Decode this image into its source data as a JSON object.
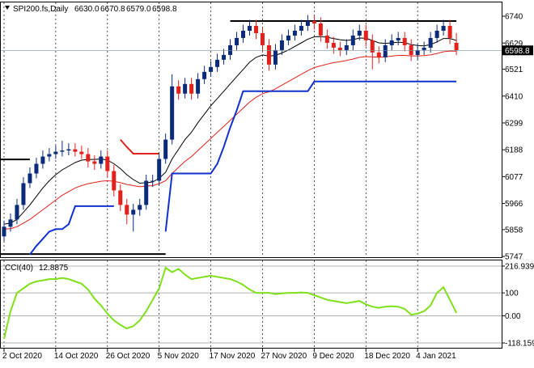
{
  "chart_data": [
    {
      "type": "candlestick",
      "title": "SPI200.fs,Daily",
      "last_labels": [
        "6630.0",
        "6670.8",
        "6579.0",
        "6598.8"
      ],
      "xlim": [
        -0.5,
        77
      ],
      "xticks": [
        {
          "value": 0,
          "label": "2 Oct 2020"
        },
        {
          "value": 8,
          "label": "14 Oct 2020"
        },
        {
          "value": 16,
          "label": "26 Oct 2020"
        },
        {
          "value": 24,
          "label": "5 Nov 2020"
        },
        {
          "value": 32,
          "label": "17 Nov 2020"
        },
        {
          "value": 40,
          "label": "27 Nov 2020"
        },
        {
          "value": 48,
          "label": "9 Dec 2020"
        },
        {
          "value": 56,
          "label": "18 Dec 2020"
        },
        {
          "value": 64,
          "label": "4 Jan 2021"
        }
      ],
      "ylim": [
        5744,
        6797
      ],
      "yticks": [
        6740,
        6629,
        6521,
        6410,
        6299,
        6188,
        6077,
        5966,
        5858,
        5747
      ],
      "up_color": "#0b2a7a",
      "down_color": "#e3201b",
      "open": [
        5830,
        5870,
        5900,
        5960,
        6050,
        6090,
        6130,
        6160,
        6170,
        6180,
        6185,
        6190,
        6180,
        6170,
        6140,
        6130,
        6160,
        6100,
        6020,
        5960,
        5920,
        5940,
        5960,
        6060,
        6060,
        6150,
        6230,
        6450,
        6420,
        6460,
        6420,
        6480,
        6510,
        6530,
        6560,
        6580,
        6620,
        6650,
        6680,
        6700,
        6670,
        6620,
        6540,
        6600,
        6640,
        6660,
        6680,
        6700,
        6720,
        6710,
        6660,
        6630,
        6610,
        6600,
        6620,
        6660,
        6680,
        6640,
        6590,
        6570,
        6620,
        6640,
        6650,
        6620,
        6580,
        6600,
        6610,
        6650,
        6680,
        6700,
        6630
      ],
      "high": [
        5895,
        5925,
        5985,
        6075,
        6115,
        6155,
        6185,
        6195,
        6205,
        6225,
        6215,
        6215,
        6205,
        6195,
        6165,
        6185,
        6185,
        6125,
        6045,
        5985,
        5965,
        5985,
        6085,
        6085,
        6175,
        6255,
        6500,
        6475,
        6485,
        6485,
        6505,
        6535,
        6555,
        6585,
        6605,
        6645,
        6675,
        6705,
        6725,
        6725,
        6695,
        6645,
        6625,
        6665,
        6685,
        6705,
        6725,
        6745,
        6745,
        6735,
        6685,
        6655,
        6635,
        6645,
        6685,
        6705,
        6705,
        6665,
        6615,
        6645,
        6665,
        6675,
        6675,
        6645,
        6625,
        6635,
        6675,
        6705,
        6725,
        6725,
        6670.8
      ],
      "low": [
        5810,
        5850,
        5880,
        5940,
        6030,
        6070,
        6110,
        6140,
        6150,
        6160,
        6165,
        6160,
        6150,
        6115,
        6105,
        6110,
        6075,
        5995,
        5935,
        5880,
        5850,
        5915,
        5940,
        6035,
        6040,
        6130,
        6210,
        6395,
        6400,
        6395,
        6400,
        6460,
        6490,
        6510,
        6540,
        6560,
        6600,
        6630,
        6660,
        6645,
        6595,
        6515,
        6520,
        6580,
        6620,
        6640,
        6660,
        6680,
        6685,
        6635,
        6605,
        6585,
        6575,
        6580,
        6600,
        6640,
        6615,
        6520,
        6545,
        6550,
        6600,
        6620,
        6595,
        6555,
        6560,
        6580,
        6590,
        6630,
        6660,
        6625,
        6579
      ],
      "close": [
        5870,
        5900,
        5960,
        6050,
        6090,
        6130,
        6160,
        6170,
        6180,
        6185,
        6190,
        6180,
        6170,
        6140,
        6130,
        6160,
        6100,
        6020,
        5960,
        5920,
        5940,
        5960,
        6060,
        6060,
        6150,
        6230,
        6450,
        6420,
        6460,
        6420,
        6480,
        6510,
        6530,
        6560,
        6580,
        6620,
        6650,
        6680,
        6700,
        6670,
        6620,
        6540,
        6600,
        6640,
        6660,
        6680,
        6700,
        6720,
        6710,
        6660,
        6630,
        6610,
        6600,
        6620,
        6660,
        6680,
        6640,
        6590,
        6570,
        6620,
        6640,
        6650,
        6620,
        6580,
        6600,
        6610,
        6650,
        6680,
        6700,
        6650,
        6598.8
      ],
      "lines": [
        {
          "color": "#000000",
          "values": [
            5880,
            5885,
            5900,
            5930,
            5960,
            5995,
            6030,
            6060,
            6085,
            6105,
            6120,
            6135,
            6145,
            6148,
            6148,
            6150,
            6145,
            6130,
            6110,
            6085,
            6065,
            6050,
            6052,
            6055,
            6070,
            6095,
            6150,
            6190,
            6230,
            6260,
            6300,
            6335,
            6370,
            6400,
            6430,
            6460,
            6490,
            6520,
            6550,
            6570,
            6580,
            6575,
            6578,
            6588,
            6600,
            6615,
            6630,
            6645,
            6655,
            6656,
            6653,
            6648,
            6643,
            6640,
            6643,
            6650,
            6649,
            6640,
            6630,
            6628,
            6630,
            6633,
            6631,
            6623,
            6619,
            6617,
            6623,
            6634,
            6648,
            6648,
            6640
          ]
        },
        {
          "color": "#e3201b",
          "values": [
            5860,
            5862,
            5870,
            5885,
            5900,
            5920,
            5940,
            5960,
            5980,
            6000,
            6015,
            6030,
            6040,
            6048,
            6053,
            6058,
            6060,
            6058,
            6052,
            6045,
            6040,
            6035,
            6038,
            6040,
            6048,
            6060,
            6090,
            6115,
            6140,
            6160,
            6185,
            6210,
            6235,
            6260,
            6285,
            6310,
            6335,
            6360,
            6385,
            6405,
            6420,
            6428,
            6440,
            6455,
            6470,
            6485,
            6500,
            6515,
            6528,
            6535,
            6542,
            6548,
            6552,
            6557,
            6563,
            6570,
            6573,
            6572,
            6570,
            6572,
            6575,
            6578,
            6578,
            6576,
            6576,
            6577,
            6580,
            6586,
            6593,
            6596,
            6595
          ]
        },
        {
          "color": "#1030d0",
          "values": [
            null,
            null,
            null,
            null,
            5755,
            5790,
            5820,
            5850,
            5860,
            5860,
            5880,
            5955,
            5955,
            5955,
            5955,
            5955,
            5955,
            5955,
            null,
            null,
            null,
            null,
            null,
            null,
            null,
            5850,
            6090,
            6090,
            6090,
            6090,
            6090,
            6090,
            6090,
            6130,
            6200,
            6280,
            6350,
            6430,
            6430,
            6430,
            6430,
            6430,
            6430,
            6430,
            6430,
            6430,
            6430,
            6430,
            6470,
            6470,
            6470,
            6470,
            6470,
            6470,
            6470,
            6470,
            6470,
            6470,
            6470,
            6470,
            6470,
            6470,
            6470,
            6470,
            6470,
            6470,
            6470,
            6470,
            6470,
            6470,
            6470
          ]
        },
        {
          "color": "#e3201b",
          "values": [
            null,
            null,
            null,
            null,
            null,
            null,
            null,
            null,
            null,
            null,
            null,
            null,
            null,
            null,
            null,
            null,
            null,
            null,
            6230,
            6200,
            6172,
            6172,
            6172,
            6172,
            6172,
            null,
            null,
            null,
            null,
            null,
            null,
            null,
            null,
            null,
            null,
            null,
            null,
            null,
            null,
            null,
            null,
            null,
            null,
            null,
            null,
            null,
            null,
            null,
            null,
            null,
            null,
            null,
            null,
            null,
            null,
            null,
            null,
            null,
            null,
            null,
            null,
            null,
            null,
            null,
            null,
            null,
            null,
            null,
            null,
            null,
            null
          ]
        }
      ],
      "hlines": [
        {
          "value": 6148,
          "x": [
            -0.5,
            4
          ]
        },
        {
          "value": 5757,
          "x": [
            -0.5,
            25
          ]
        },
        {
          "value": 6720,
          "x": [
            35,
            70
          ]
        }
      ]
    },
    {
      "type": "line",
      "title": "CCI(40)",
      "color": "#7fe01a",
      "xlim": [
        -0.5,
        77
      ],
      "ylim": [
        -139.3,
        241.6
      ],
      "yticks": [
        216.9393,
        100,
        {
          "value": 0,
          "label": "0.00"
        },
        -118.159
      ],
      "values": [
        -100,
        20,
        100,
        120,
        140,
        150,
        155,
        160,
        160,
        165,
        160,
        150,
        140,
        115,
        75,
        45,
        10,
        -20,
        -40,
        -55,
        -45,
        -20,
        20,
        70,
        120,
        210,
        190,
        205,
        180,
        160,
        165,
        170,
        175,
        170,
        165,
        160,
        150,
        135,
        115,
        100,
        100,
        100,
        95,
        98,
        100,
        100,
        102,
        100,
        90,
        80,
        70,
        65,
        60,
        55,
        60,
        65,
        50,
        40,
        35,
        40,
        42,
        40,
        30,
        5,
        10,
        20,
        45,
        100,
        125,
        70,
        12.8875
      ]
    }
  ]
}
